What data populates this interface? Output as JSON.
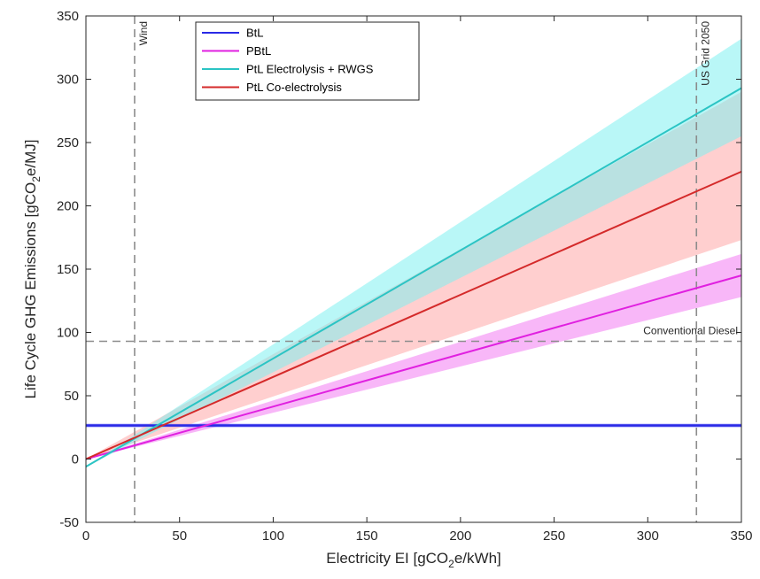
{
  "chart_data": {
    "type": "line",
    "xlabel": {
      "pre": "Electricity EI [gCO",
      "sub": "2",
      "post": "e/kWh]"
    },
    "ylabel": {
      "pre": "Life Cycle GHG Emissions [gCO",
      "sub": "2",
      "post": "e/MJ]"
    },
    "xlim": [
      0,
      350
    ],
    "ylim": [
      -50,
      350
    ],
    "xticks": [
      0,
      50,
      100,
      150,
      200,
      250,
      300,
      350
    ],
    "yticks": [
      -50,
      0,
      50,
      100,
      150,
      200,
      250,
      300,
      350
    ],
    "grid": false,
    "legend_position": "top-left",
    "series": [
      {
        "name": "BtL",
        "color": "#2a2ae6",
        "band_color": "#8080ff",
        "x": [
          0,
          350
        ],
        "y": [
          26.5,
          26.5
        ],
        "lower": [
          25,
          25
        ],
        "upper": [
          28,
          28
        ]
      },
      {
        "name": "PBtL",
        "color": "#e020e0",
        "band_color": "#f27cf2",
        "x": [
          0,
          350
        ],
        "y": [
          0,
          145
        ],
        "lower": [
          0,
          128
        ],
        "upper": [
          0,
          162
        ]
      },
      {
        "name": "PtL Electrolysis + RWGS",
        "color": "#2bc4c4",
        "band_color": "#7ff0f0",
        "x": [
          0,
          350
        ],
        "y": [
          -6,
          293
        ],
        "lower": [
          -6,
          255
        ],
        "upper": [
          -6,
          332
        ]
      },
      {
        "name": "PtL Co-electrolysis",
        "color": "#d42a2a",
        "band_color": "#ffa8a8",
        "x": [
          0,
          350
        ],
        "y": [
          0,
          227
        ],
        "lower": [
          0,
          173
        ],
        "upper": [
          0,
          290
        ]
      }
    ],
    "reference_lines": [
      {
        "orientation": "vertical",
        "value": 26,
        "label": "Wind"
      },
      {
        "orientation": "vertical",
        "value": 326,
        "label": "US Grid 2050"
      },
      {
        "orientation": "horizontal",
        "value": 93,
        "label": "Conventional Diesel"
      }
    ]
  }
}
